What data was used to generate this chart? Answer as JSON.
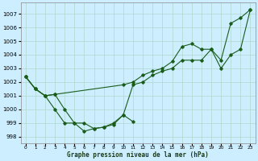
{
  "title": "Graphe pression niveau de la mer (hPa)",
  "bg_color": "#cceeff",
  "line_color": "#1a5c1a",
  "grid_color": "#b0d8cc",
  "ylim": [
    997.5,
    1007.8
  ],
  "xlim": [
    -0.5,
    23.5
  ],
  "yticks": [
    998,
    999,
    1000,
    1001,
    1002,
    1003,
    1004,
    1005,
    1006,
    1007
  ],
  "xticks": [
    0,
    1,
    2,
    3,
    4,
    5,
    6,
    7,
    8,
    9,
    10,
    11,
    12,
    13,
    14,
    15,
    16,
    17,
    18,
    19,
    20,
    21,
    22,
    23
  ],
  "series1": {
    "x": [
      0,
      1,
      2,
      3,
      4,
      5,
      6,
      7,
      8,
      9,
      10,
      11
    ],
    "y": [
      1002.4,
      1001.5,
      1001.0,
      1000.0,
      999.0,
      999.0,
      998.4,
      998.6,
      998.7,
      998.9,
      999.6,
      999.1
    ]
  },
  "series2": {
    "x": [
      0,
      1,
      2,
      3,
      4,
      5,
      6,
      7,
      8,
      9,
      10,
      11,
      12,
      13,
      14,
      15,
      16,
      17,
      18,
      19,
      20,
      21,
      22,
      23
    ],
    "y": [
      1002.4,
      1001.5,
      1001.0,
      1001.1,
      1000.0,
      999.0,
      999.0,
      998.6,
      998.7,
      999.0,
      999.6,
      1001.8,
      1002.0,
      1002.5,
      1002.8,
      1003.0,
      1003.6,
      1003.6,
      1003.6,
      1004.4,
      1003.0,
      1004.0,
      1004.4,
      1007.3
    ]
  },
  "series3": {
    "x": [
      0,
      1,
      2,
      3,
      10,
      11,
      12,
      13,
      14,
      15,
      16,
      17,
      18,
      19,
      20,
      21,
      22,
      23
    ],
    "y": [
      1002.4,
      1001.5,
      1001.0,
      1001.1,
      1001.8,
      1002.0,
      1002.5,
      1002.8,
      1003.0,
      1003.5,
      1004.6,
      1004.8,
      1004.4,
      1004.4,
      1003.6,
      1006.3,
      1006.7,
      1007.3
    ]
  }
}
